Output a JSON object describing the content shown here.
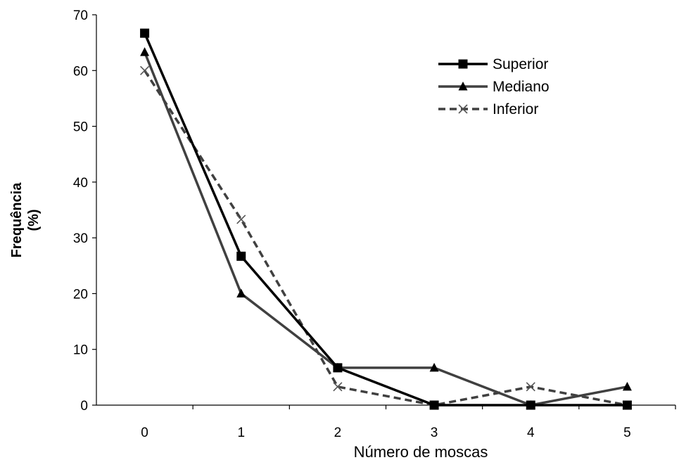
{
  "chart_data": {
    "type": "line",
    "title": "",
    "xlabel": "Número de moscas",
    "ylabel": [
      "Frequência",
      "(%)"
    ],
    "x": [
      0,
      1,
      2,
      3,
      4,
      5
    ],
    "xlim": [
      0,
      5
    ],
    "ylim": [
      0,
      70
    ],
    "yticks": [
      0,
      10,
      20,
      30,
      40,
      50,
      60,
      70
    ],
    "grid": false,
    "legend": "top-right",
    "series": [
      {
        "name": "Superior",
        "values": [
          66.7,
          26.7,
          6.7,
          0,
          0,
          0
        ],
        "color": "#000000",
        "marker": "square",
        "dash": "solid"
      },
      {
        "name": "Mediano",
        "values": [
          63.3,
          20.0,
          6.7,
          6.7,
          0,
          3.3
        ],
        "color": "#404040",
        "marker": "triangle",
        "dash": "solid"
      },
      {
        "name": "Inferior",
        "values": [
          60.0,
          33.3,
          3.3,
          0,
          3.3,
          0
        ],
        "color": "#404040",
        "marker": "x",
        "dash": "dashed"
      }
    ]
  }
}
